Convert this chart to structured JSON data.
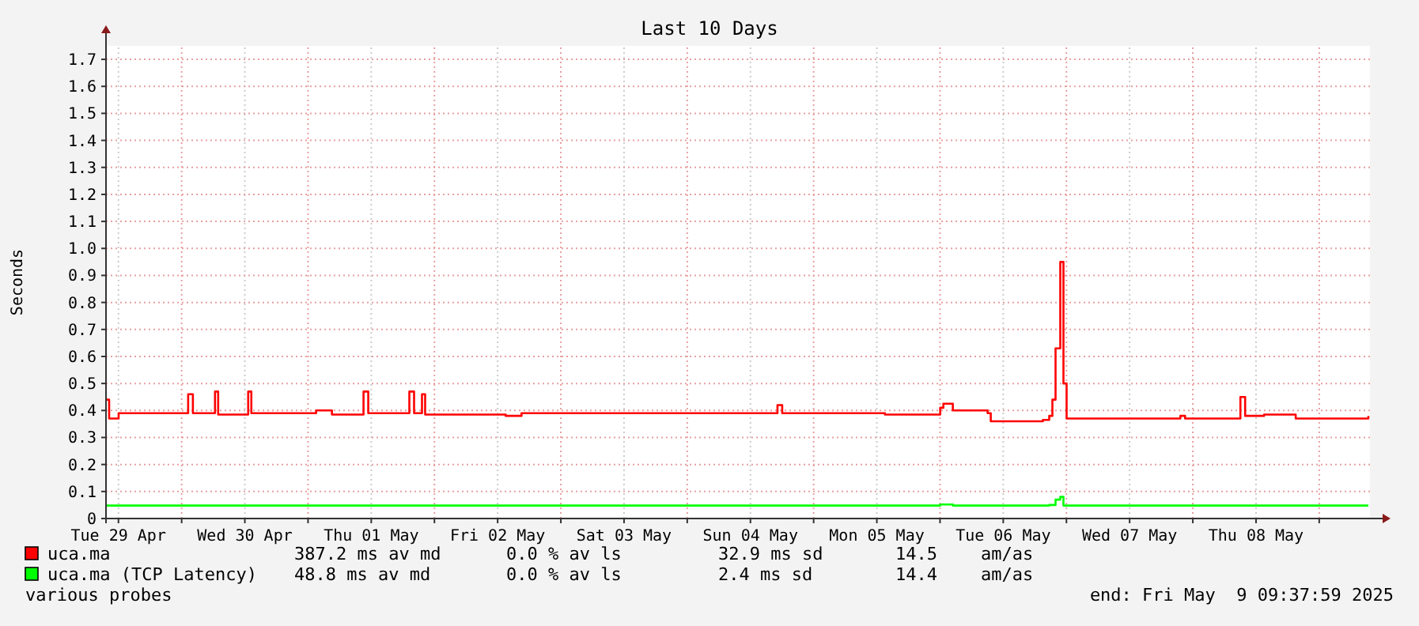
{
  "chart_data": {
    "type": "step",
    "title": "Last 10 Days",
    "ylabel": "Seconds",
    "xlim": [
      "2025-04-29T09:38",
      "2025-05-09T09:38"
    ],
    "xticks": [
      {
        "value": "2025-04-29T12:00",
        "label": "Tue 29 Apr"
      },
      {
        "value": "2025-04-30T00:00",
        "label": null
      },
      {
        "value": "2025-04-30T12:00",
        "label": "Wed 30 Apr"
      },
      {
        "value": "2025-05-01T00:00",
        "label": null
      },
      {
        "value": "2025-05-01T12:00",
        "label": "Thu 01 May"
      },
      {
        "value": "2025-05-02T00:00",
        "label": null
      },
      {
        "value": "2025-05-02T12:00",
        "label": "Fri 02 May"
      },
      {
        "value": "2025-05-03T00:00",
        "label": null
      },
      {
        "value": "2025-05-03T12:00",
        "label": "Sat 03 May"
      },
      {
        "value": "2025-05-04T00:00",
        "label": null
      },
      {
        "value": "2025-05-04T12:00",
        "label": "Sun 04 May"
      },
      {
        "value": "2025-05-05T00:00",
        "label": null
      },
      {
        "value": "2025-05-05T12:00",
        "label": "Mon 05 May"
      },
      {
        "value": "2025-05-06T00:00",
        "label": null
      },
      {
        "value": "2025-05-06T12:00",
        "label": "Tue 06 May"
      },
      {
        "value": "2025-05-07T00:00",
        "label": null
      },
      {
        "value": "2025-05-07T12:00",
        "label": "Wed 07 May"
      },
      {
        "value": "2025-05-08T00:00",
        "label": null
      },
      {
        "value": "2025-05-08T12:00",
        "label": "Thu 08 May"
      },
      {
        "value": "2025-05-09T00:00",
        "label": null
      }
    ],
    "ylim": [
      0,
      1.75
    ],
    "yticks": [
      0,
      {
        "value": 0.1,
        "label": "0.1"
      },
      {
        "value": 0.2,
        "label": "0.2"
      },
      {
        "value": 0.3,
        "label": "0.3"
      },
      {
        "value": 0.4,
        "label": "0.4"
      },
      {
        "value": 0.5,
        "label": "0.5"
      },
      {
        "value": 0.6,
        "label": "0.6"
      },
      {
        "value": 0.7,
        "label": "0.7"
      },
      {
        "value": 0.8,
        "label": "0.8"
      },
      {
        "value": 0.9,
        "label": "0.9"
      },
      {
        "value": 1.0,
        "label": "1.0"
      },
      {
        "value": 1.1,
        "label": "1.1"
      },
      {
        "value": 1.2,
        "label": "1.2"
      },
      {
        "value": 1.3,
        "label": "1.3"
      },
      {
        "value": 1.4,
        "label": "1.4"
      },
      {
        "value": 1.5,
        "label": "1.5"
      },
      {
        "value": 1.6,
        "label": "1.6"
      },
      {
        "value": 1.7,
        "label": "1.7"
      }
    ],
    "grid": true,
    "legend": "bottom",
    "series": [
      {
        "name": "uca.ma",
        "color": "#ff0000",
        "x": [
          "2025-04-29T09:38",
          "2025-04-29T10:14",
          "2025-04-29T12:02",
          "2025-04-30T00:56",
          "2025-04-30T01:14",
          "2025-04-30T02:08",
          "2025-04-30T06:20",
          "2025-04-30T06:56",
          "2025-04-30T12:38",
          "2025-04-30T13:14",
          "2025-05-01T01:32",
          "2025-05-01T04:32",
          "2025-05-01T10:32",
          "2025-05-01T11:26",
          "2025-05-01T19:14",
          "2025-05-01T20:08",
          "2025-05-01T21:38",
          "2025-05-01T22:14",
          "2025-05-02T13:32",
          "2025-05-02T16:32",
          "2025-05-03T19:32",
          "2025-05-04T16:32",
          "2025-05-04T17:08",
          "2025-05-04T18:02",
          "2025-05-05T13:32",
          "2025-05-06T00:02",
          "2025-05-06T00:38",
          "2025-05-06T02:26",
          "2025-05-06T09:02",
          "2025-05-06T09:38",
          "2025-05-06T19:32",
          "2025-05-06T20:44",
          "2025-05-06T21:20",
          "2025-05-06T21:56",
          "2025-05-06T22:50",
          "2025-05-06T23:26",
          "2025-05-07T00:02",
          "2025-05-07T07:32",
          "2025-05-07T21:38",
          "2025-05-07T22:32",
          "2025-05-08T09:02",
          "2025-05-08T09:56",
          "2025-05-08T13:32",
          "2025-05-08T19:32",
          "2025-05-09T09:20"
        ],
        "values": [
          0.44,
          0.37,
          0.39,
          0.39,
          0.46,
          0.39,
          0.47,
          0.385,
          0.47,
          0.39,
          0.4,
          0.385,
          0.47,
          0.39,
          0.47,
          0.39,
          0.46,
          0.385,
          0.38,
          0.39,
          0.39,
          0.39,
          0.42,
          0.39,
          0.385,
          0.41,
          0.425,
          0.4,
          0.39,
          0.36,
          0.365,
          0.38,
          0.44,
          0.63,
          0.95,
          0.5,
          0.37,
          0.37,
          0.38,
          0.37,
          0.45,
          0.38,
          0.385,
          0.37,
          0.38
        ]
      },
      {
        "name": "uca.ma (TCP Latency)",
        "color": "#00ff00",
        "x": [
          "2025-04-29T09:38",
          "2025-05-06T00:02",
          "2025-05-06T02:26",
          "2025-05-06T20:44",
          "2025-05-06T21:56",
          "2025-05-06T22:50",
          "2025-05-06T23:26",
          "2025-05-09T09:20"
        ],
        "values": [
          0.048,
          0.052,
          0.048,
          0.05,
          0.07,
          0.08,
          0.048,
          0.048
        ]
      }
    ],
    "annotations": [
      "387.2 ms av md",
      "0.0 % av ls",
      "32.9 ms sd",
      "14.5",
      "am/as",
      "48.8 ms av md",
      "0.0 % av ls",
      "2.4 ms sd",
      "14.4",
      "am/as",
      "various probes",
      "end: Fri May  9 09:37:59 2025"
    ]
  }
}
